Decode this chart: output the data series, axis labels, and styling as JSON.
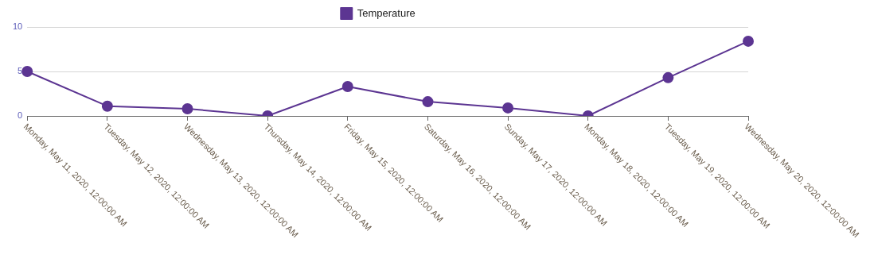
{
  "chart_data": {
    "type": "line",
    "categories": [
      "Monday, May 11, 2020, 12:00:00 AM",
      "Tuesday, May 12, 2020, 12:00:00 AM",
      "Wednesday, May 13, 2020, 12:00:00 AM",
      "Thursday, May 14, 2020, 12:00:00 AM",
      "Friday, May 15, 2020, 12:00:00 AM",
      "Saturday, May 16, 2020, 12:00:00 AM",
      "Sunday, May 17, 2020, 12:00:00 AM",
      "Monday, May 18, 2020, 12:00:00 AM",
      "Tuesday, May 19, 2020, 12:00:00 AM",
      "Wednesday, May 20, 2020, 12:00:00 AM"
    ],
    "series": [
      {
        "name": "Temperature",
        "color": "#5c3592",
        "values": [
          5.0,
          1.1,
          0.8,
          0,
          3.3,
          1.6,
          0.9,
          0,
          4.3,
          8.4
        ]
      }
    ],
    "ylim": [
      0,
      10
    ],
    "yticks": [
      0,
      5,
      10
    ],
    "grid": "y",
    "legend": "top",
    "marker": "circle",
    "line_style": "solid"
  }
}
